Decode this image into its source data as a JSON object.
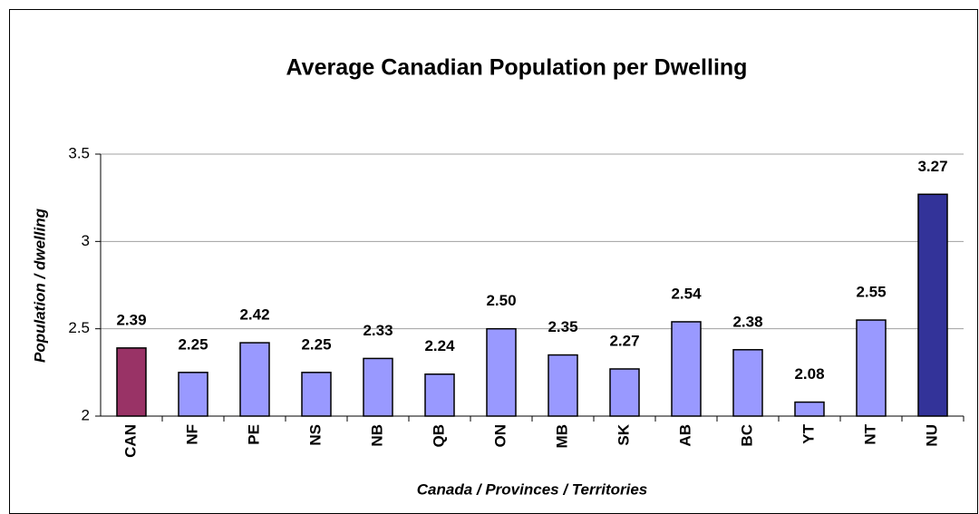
{
  "chart_data": {
    "type": "bar",
    "title": "Average Canadian Population per Dwelling",
    "xlabel": "Canada / Provinces / Territories",
    "ylabel": "Population / dwelling",
    "categories": [
      "CAN",
      "NF",
      "PE",
      "NS",
      "NB",
      "QB",
      "ON",
      "MB",
      "SK",
      "AB",
      "BC",
      "YT",
      "NT",
      "NU"
    ],
    "values": [
      2.39,
      2.25,
      2.42,
      2.25,
      2.33,
      2.24,
      2.5,
      2.35,
      2.27,
      2.54,
      2.38,
      2.08,
      2.55,
      3.27
    ],
    "value_labels": [
      "2.39",
      "2.25",
      "2.42",
      "2.25",
      "2.33",
      "2.24",
      "2.50",
      "2.35",
      "2.27",
      "2.54",
      "2.38",
      "2.08",
      "2.55",
      "3.27"
    ],
    "colors": [
      "#993366",
      "#9999ff",
      "#9999ff",
      "#9999ff",
      "#9999ff",
      "#9999ff",
      "#9999ff",
      "#9999ff",
      "#9999ff",
      "#9999ff",
      "#9999ff",
      "#9999ff",
      "#9999ff",
      "#333399"
    ],
    "ylim": [
      2,
      3.5
    ],
    "yticks": [
      2,
      2.5,
      3,
      3.5
    ],
    "grid": true
  }
}
